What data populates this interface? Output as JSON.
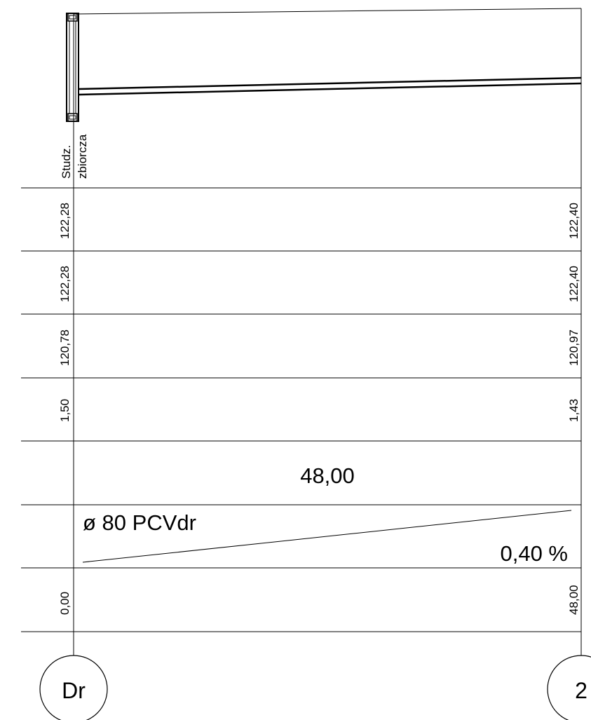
{
  "manhole_label_line1": "Studz.",
  "manhole_label_line2": "zbiorcza",
  "rows": {
    "terrain": {
      "left": "122,28",
      "right": "122,40"
    },
    "lid": {
      "left": "122,28",
      "right": "122,40"
    },
    "invert": {
      "left": "120,78",
      "right": "120,97"
    },
    "depth": {
      "left": "1,50",
      "right": "1,43"
    },
    "length": "48,00",
    "pipe": {
      "label": "ø 80 PCVdr",
      "slope": "0,40 %"
    },
    "chainage": {
      "left": "0,00",
      "right": "48,00"
    }
  },
  "nodes": {
    "left": "Dr",
    "right": "2"
  }
}
